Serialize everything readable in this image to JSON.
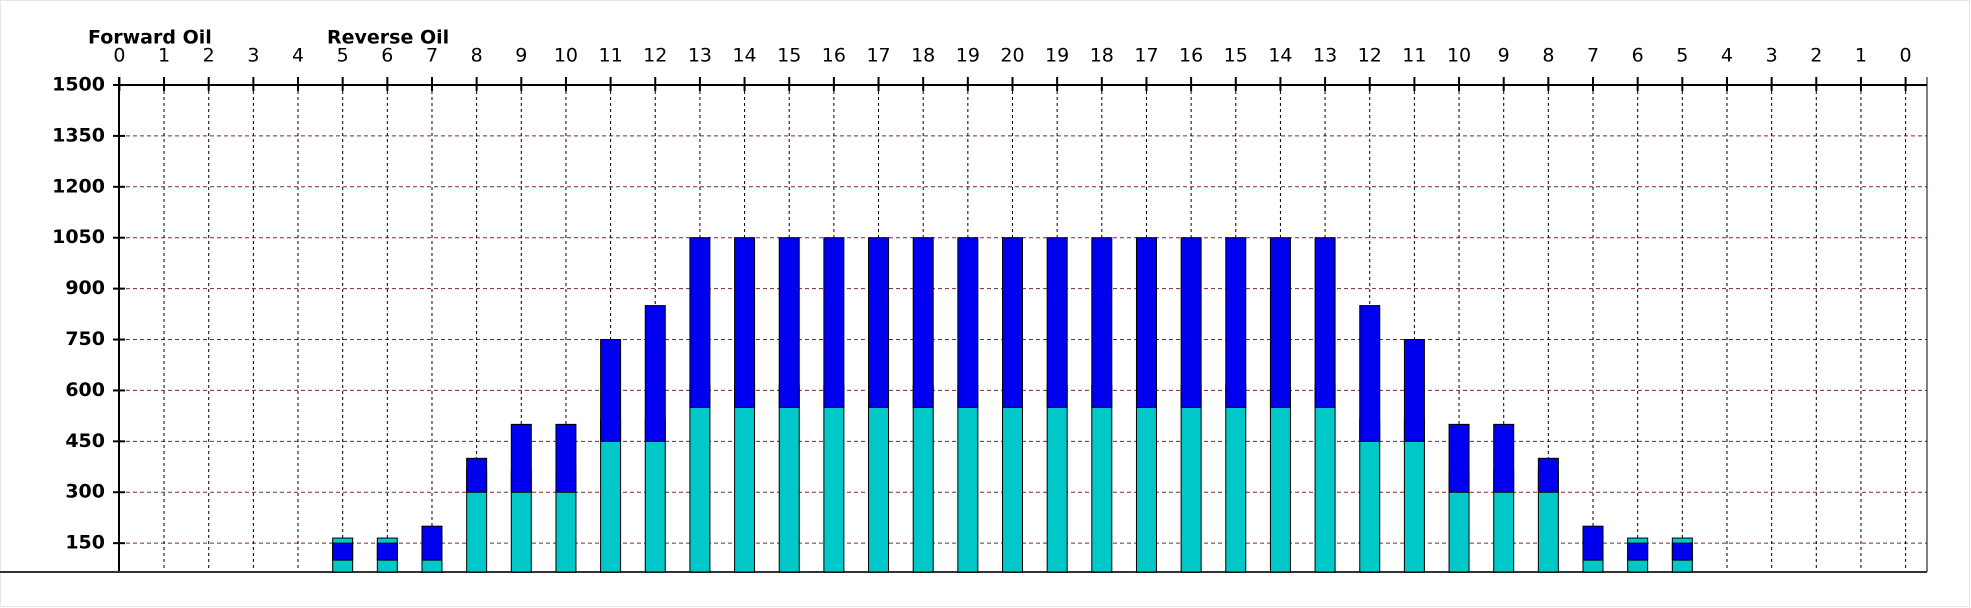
{
  "chart_data": {
    "type": "stacked-bar",
    "categories": [
      "0",
      "1",
      "2",
      "3",
      "4",
      "5",
      "6",
      "7",
      "8",
      "9",
      "10",
      "11",
      "12",
      "13",
      "14",
      "15",
      "16",
      "17",
      "18",
      "19",
      "20",
      "19",
      "18",
      "17",
      "16",
      "15",
      "14",
      "13",
      "12",
      "11",
      "10",
      "9",
      "8",
      "7",
      "6",
      "5",
      "4",
      "3",
      "2",
      "1",
      "0"
    ],
    "series": [
      {
        "name": "Forward Oil",
        "color": "#00c8c8",
        "values": [
          null,
          null,
          null,
          null,
          null,
          100,
          100,
          100,
          300,
          300,
          300,
          450,
          450,
          550,
          550,
          550,
          550,
          550,
          550,
          550,
          550,
          550,
          550,
          550,
          550,
          550,
          550,
          550,
          450,
          450,
          300,
          300,
          300,
          100,
          100,
          100,
          null,
          null,
          null,
          null,
          null
        ]
      },
      {
        "name": "Reverse Oil",
        "color": "#0000f0",
        "values": [
          null,
          null,
          null,
          null,
          null,
          50,
          50,
          100,
          100,
          200,
          200,
          300,
          400,
          500,
          500,
          500,
          500,
          500,
          500,
          500,
          500,
          500,
          500,
          500,
          500,
          500,
          500,
          500,
          400,
          300,
          200,
          200,
          100,
          100,
          50,
          50,
          null,
          null,
          null,
          null,
          null
        ]
      }
    ],
    "legend_colors": [
      "#40d0c8",
      "#1010a8"
    ],
    "ylim": [
      65,
      1500
    ],
    "yticks": [
      150,
      300,
      450,
      600,
      750,
      900,
      1050,
      1200,
      1350,
      1500
    ],
    "grid": true
  }
}
